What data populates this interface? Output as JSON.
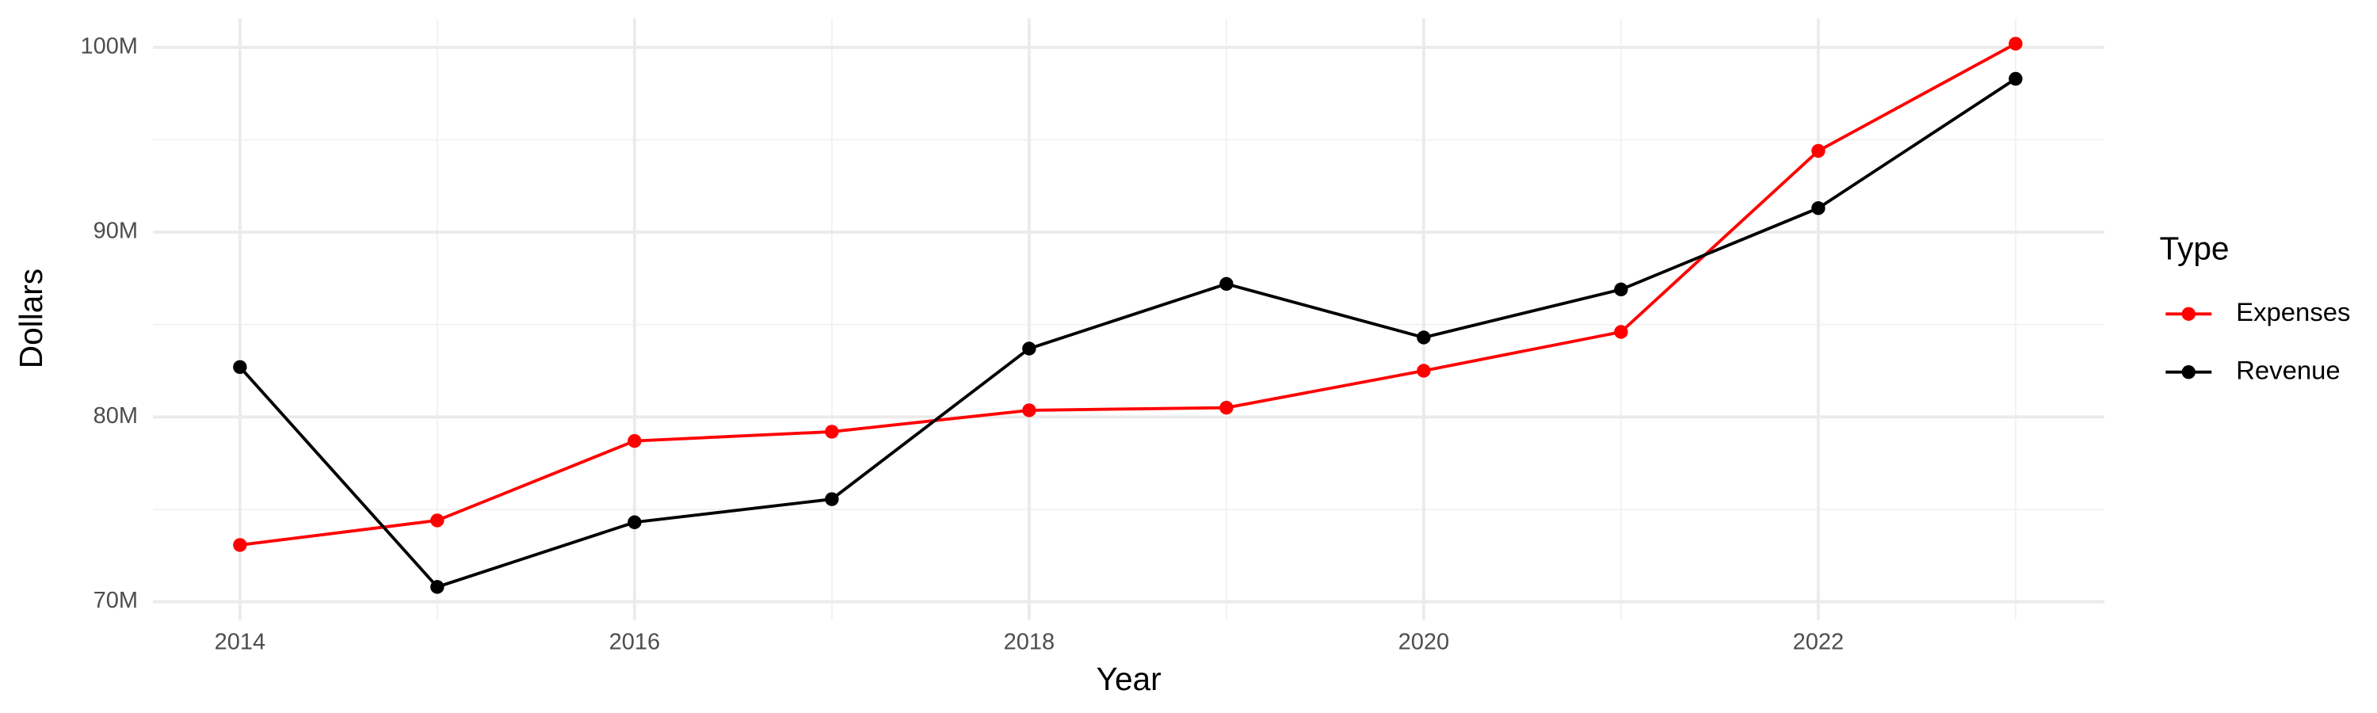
{
  "chart_data": {
    "type": "line",
    "x_label": "Year",
    "y_label": "Dollars",
    "legend_title": "Type",
    "x": [
      2014,
      2015,
      2016,
      2017,
      2018,
      2019,
      2020,
      2021,
      2022,
      2023
    ],
    "series": [
      {
        "name": "Expenses",
        "color": "#ff0000",
        "values": [
          73070000,
          74400000,
          78700000,
          79200000,
          80360000,
          80500000,
          82500000,
          84600000,
          94400000,
          100200000
        ]
      },
      {
        "name": "Revenue",
        "color": "#000000",
        "values": [
          82700000,
          70800000,
          74300000,
          75550000,
          83700000,
          87200000,
          84300000,
          86900000,
          91300000,
          98300000
        ]
      }
    ],
    "xlim": [
      2013.56,
      2023.45
    ],
    "xticks": [
      2014,
      2016,
      2018,
      2020,
      2022
    ],
    "ylim": [
      69000000,
      101570000
    ],
    "yticks": [
      {
        "value": 70000000,
        "label": "70M"
      },
      {
        "value": 80000000,
        "label": "80M"
      },
      {
        "value": 90000000,
        "label": "90M"
      },
      {
        "value": 100000000,
        "label": "100M"
      }
    ],
    "grid": true,
    "legend": "right"
  }
}
